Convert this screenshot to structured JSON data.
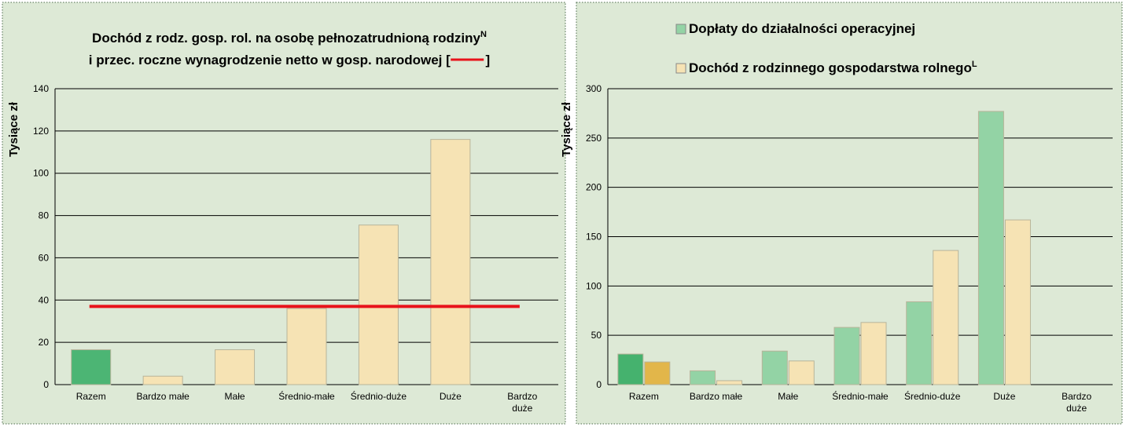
{
  "chart_data": [
    {
      "type": "bar",
      "title": {
        "line1": "Dochód z rodz. gosp. rol. na osobę pełnozatrudnioną rodziny",
        "line1_sup": "N",
        "line2": "i przec. roczne wynagrodzenie netto w gosp. narodowej [",
        "line2_end": "]"
      },
      "ylabel": "Tysiące zł",
      "categories": [
        "Razem",
        "Bardzo małe",
        "Małe",
        "Średnio-małe",
        "Średnio-duże",
        "Duże",
        "Bardzo duże"
      ],
      "values": [
        16.5,
        4,
        16.5,
        36,
        75.5,
        116,
        null
      ],
      "colors": [
        "#4cb574",
        "#f6e3b4",
        "#f6e3b4",
        "#f6e3b4",
        "#f6e3b4",
        "#f6e3b4",
        "#f6e3b4"
      ],
      "reference_line": {
        "value": 37,
        "color": "#e8131b"
      },
      "ylim": [
        0,
        140
      ],
      "yticks": [
        0,
        20,
        40,
        60,
        80,
        100,
        120,
        140
      ],
      "grid": true
    },
    {
      "type": "grouped_bar",
      "ylabel": "Tysiące zł",
      "categories": [
        "Razem",
        "Bardzo małe",
        "Małe",
        "Średnio-małe",
        "Średnio-duże",
        "Duże",
        "Bardzo duże"
      ],
      "series": [
        {
          "name": "Dopłaty do działalności operacyjnej",
          "color": "#93d3a5",
          "colors": [
            "#45b26e",
            "#93d3a5",
            "#93d3a5",
            "#93d3a5",
            "#93d3a5",
            "#93d3a5",
            "#93d3a5"
          ],
          "values": [
            31,
            14,
            34,
            58,
            84,
            277,
            null
          ]
        },
        {
          "name": "Dochód z rodzinnego gospodarstwa rolnego",
          "name_sup": "L",
          "color": "#f6e3b4",
          "colors": [
            "#e2b64a",
            "#f6e3b4",
            "#f6e3b4",
            "#f6e3b4",
            "#f6e3b4",
            "#f6e3b4",
            "#f6e3b4"
          ],
          "values": [
            23,
            4,
            24,
            63,
            136,
            167,
            null
          ]
        }
      ],
      "ylim": [
        0,
        300
      ],
      "yticks": [
        0,
        50,
        100,
        150,
        200,
        250,
        300
      ],
      "grid": true
    }
  ]
}
